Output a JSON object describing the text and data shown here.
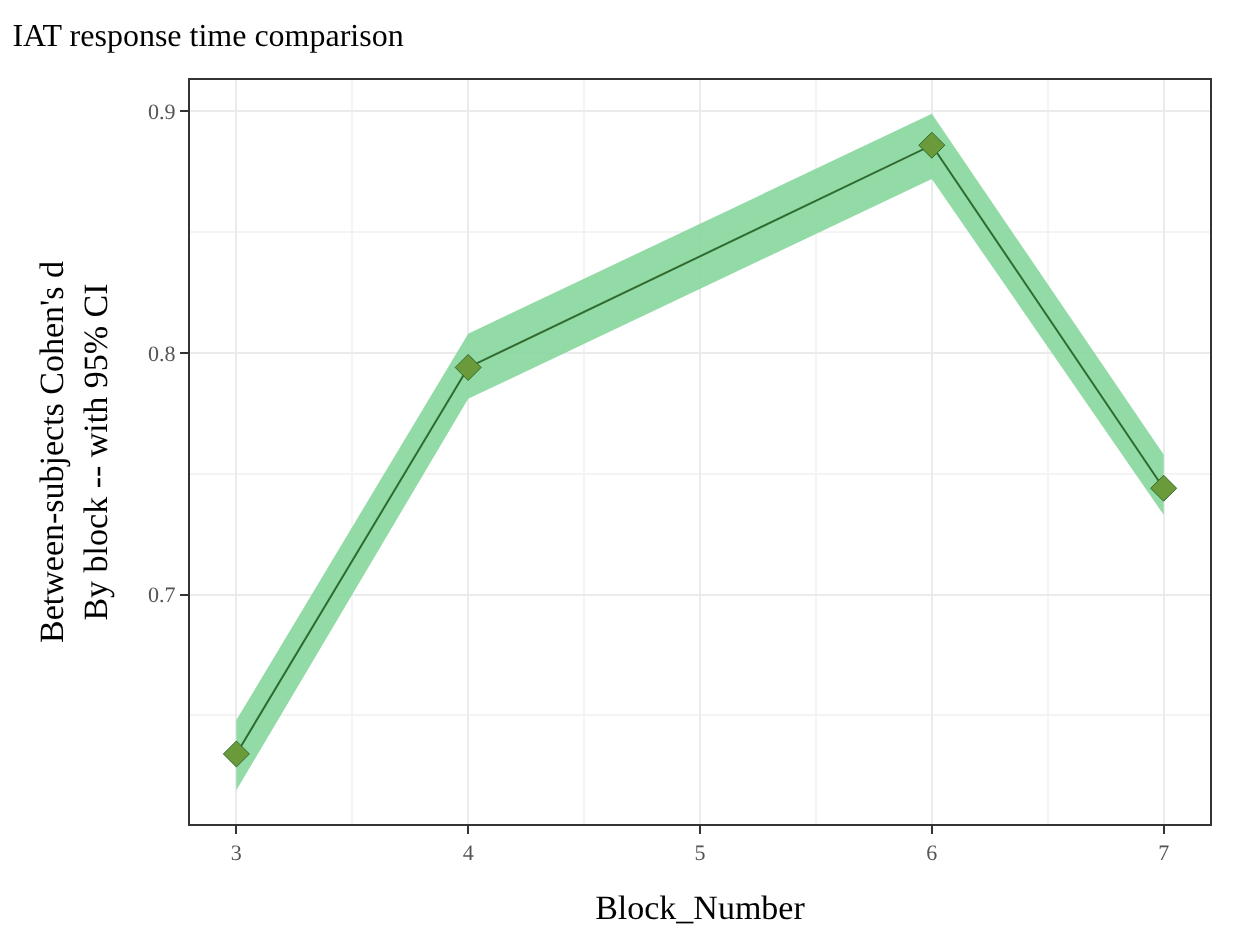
{
  "chart_data": {
    "type": "line",
    "title": "IAT response time comparison",
    "xlabel": "Block_Number",
    "ylabel": "Between-subjects Cohen's d\nBy block -- with 95% CI",
    "x": [
      3,
      4,
      6,
      7
    ],
    "series": [
      {
        "color": "#2f6b2f",
        "values": [
          0.634,
          0.794,
          0.886,
          0.744
        ],
        "lower": [
          0.619,
          0.781,
          0.872,
          0.733
        ],
        "upper": [
          0.648,
          0.808,
          0.899,
          0.758
        ]
      }
    ],
    "xlim": [
      2.8,
      7.2
    ],
    "ylim": [
      0.605,
      0.913
    ],
    "xticks": [
      3,
      {
        "value": 3.5,
        "label": null
      },
      4,
      {
        "value": 4.5,
        "label": null
      },
      5,
      {
        "value": 5.5,
        "label": null
      },
      6,
      {
        "value": 6.5,
        "label": null
      },
      7
    ],
    "yticks": [
      {
        "value": 0.65,
        "label": null
      },
      0.7,
      {
        "value": 0.75,
        "label": null
      },
      0.8,
      {
        "value": 0.85,
        "label": null
      },
      0.9
    ],
    "grid": true,
    "marker": "diamond",
    "line_style": "solid"
  }
}
